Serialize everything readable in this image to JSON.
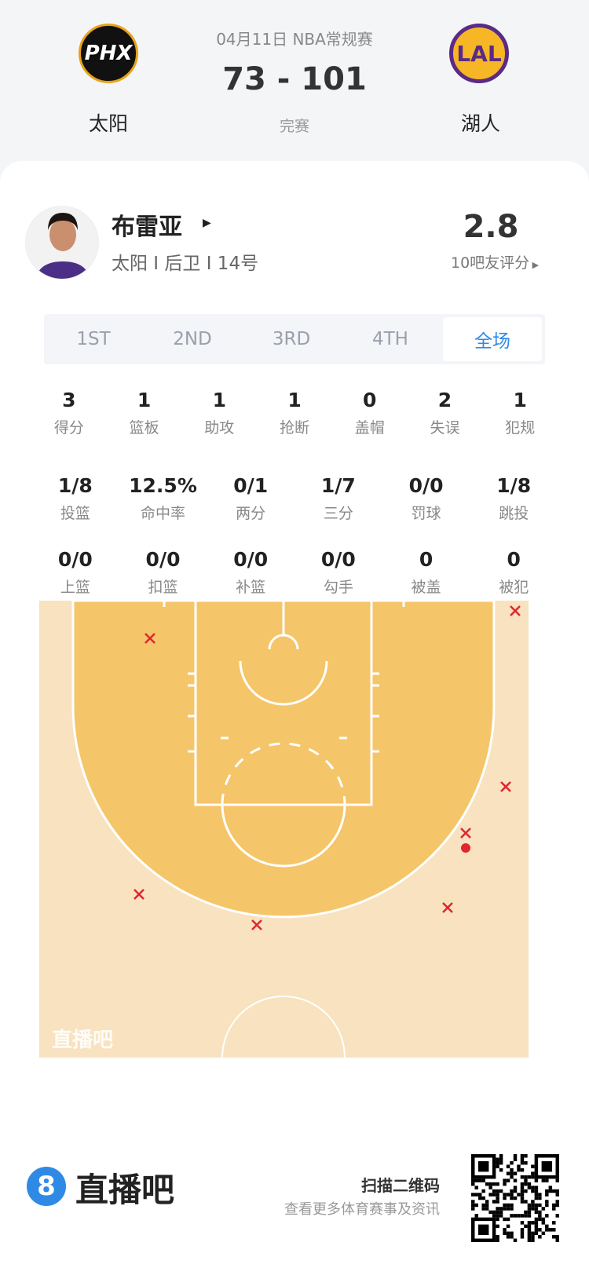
{
  "match": {
    "date_league": "04月11日 NBA常规赛",
    "score": "73 - 101",
    "status": "完赛",
    "home": {
      "name": "太阳",
      "abbr": "PHX",
      "color": "#e8a21a"
    },
    "away": {
      "name": "湖人",
      "abbr": "LAL",
      "color": "#5a2b86"
    }
  },
  "player": {
    "name": "布雷亚",
    "info": "太阳 I 后卫 I 14号",
    "rating": "2.8",
    "rating_label": "10吧友评分"
  },
  "tabs": [
    {
      "label": "1ST"
    },
    {
      "label": "2ND"
    },
    {
      "label": "3RD"
    },
    {
      "label": "4TH"
    },
    {
      "label": "全场",
      "active": true
    }
  ],
  "stats_row1": [
    {
      "v": "3",
      "l": "得分"
    },
    {
      "v": "1",
      "l": "篮板"
    },
    {
      "v": "1",
      "l": "助攻"
    },
    {
      "v": "1",
      "l": "抢断"
    },
    {
      "v": "0",
      "l": "盖帽"
    },
    {
      "v": "2",
      "l": "失误"
    },
    {
      "v": "1",
      "l": "犯规"
    }
  ],
  "stats_row2": [
    {
      "v": "1/8",
      "l": "投篮"
    },
    {
      "v": "12.5%",
      "l": "命中率"
    },
    {
      "v": "0/1",
      "l": "两分"
    },
    {
      "v": "1/7",
      "l": "三分"
    },
    {
      "v": "0/0",
      "l": "罚球"
    },
    {
      "v": "1/8",
      "l": "跳投"
    }
  ],
  "stats_row3": [
    {
      "v": "0/0",
      "l": "上篮"
    },
    {
      "v": "0/0",
      "l": "扣篮"
    },
    {
      "v": "0/0",
      "l": "补篮"
    },
    {
      "v": "0/0",
      "l": "勾手"
    },
    {
      "v": "0",
      "l": "被盖"
    },
    {
      "v": "0",
      "l": "被犯"
    }
  ],
  "court": {
    "watermark": "直播吧",
    "colors": {
      "inside": "#f5c56a",
      "outside": "#f8e2bf",
      "miss": "#e0262f",
      "made": "#e0262f"
    },
    "shots": [
      {
        "result": "miss"
      },
      {
        "result": "miss"
      },
      {
        "result": "miss"
      },
      {
        "result": "miss"
      },
      {
        "result": "made"
      },
      {
        "result": "miss"
      },
      {
        "result": "miss"
      },
      {
        "result": "miss"
      }
    ]
  },
  "footer": {
    "brand": "直播吧",
    "brand_icon": "8",
    "scan": "扫描二维码",
    "sub": "查看更多体育赛事及资讯",
    "accent": "#2f8ae5"
  }
}
